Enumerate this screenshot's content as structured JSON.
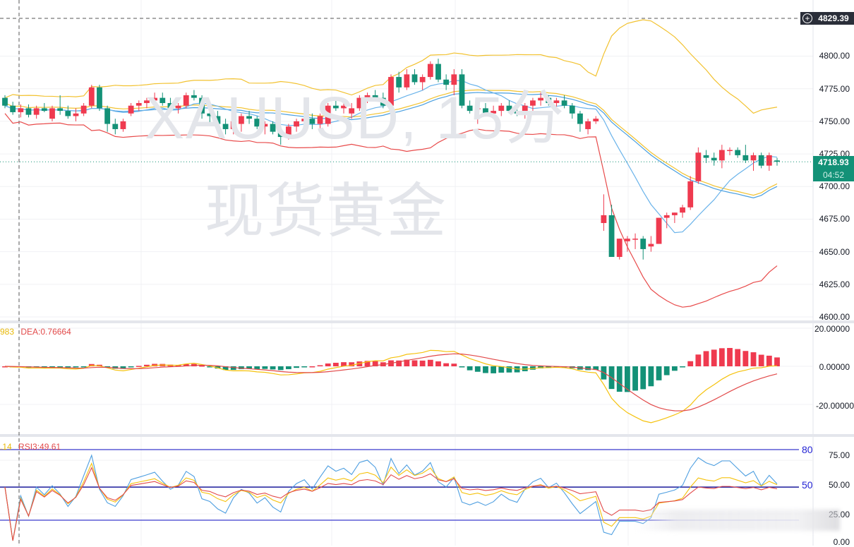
{
  "symbol": "XAUUSD",
  "timeframe": "15分",
  "watermark": {
    "line1": "XAUUSD, 15分",
    "line2": "现货黄金"
  },
  "colors": {
    "up": "#ef3a4f",
    "down": "#139177",
    "boll_upper": "#f2c230",
    "boll_mid_a": "#4a9fe0",
    "boll_mid_b": "#6ab3ea",
    "boll_lower": "#e84a4a",
    "dif": "#f5c20d",
    "dea": "#e24a4a",
    "rsi1": "#4d9ee0",
    "rsi2": "#f5c20d",
    "rsi3": "#e24a4a",
    "rsi_level": "#2424d4",
    "price_badge": "#139177",
    "crosshair_badge": "#2a2e39"
  },
  "price_axis": {
    "ticks": [
      "4800.00",
      "4775.00",
      "4750.00",
      "4725.00",
      "4700.00",
      "4675.00",
      "4650.00",
      "4625.00",
      "4600.00"
    ],
    "crosshair_value": "4829.39",
    "last_price": "4718.93",
    "countdown": "04:52"
  },
  "macd_pane": {
    "legend_dif": "983",
    "legend_dea": "DEA:0.76664",
    "ticks": [
      "20.00000",
      "0.00000",
      "-20.00000"
    ]
  },
  "rsi_pane": {
    "legend_rsi2": ".14",
    "legend_rsi3": "RSI3:49.61",
    "ticks": [
      "75.00",
      "50.00",
      "25.00",
      "0.00"
    ],
    "level_labels": [
      "80",
      "50"
    ]
  },
  "chart_data": [
    {
      "type": "candlestick",
      "title": "XAUUSD, 15分 现货黄金",
      "indicators": [
        "BOLL upper",
        "BOLL mid",
        "BOLL lower",
        "MA"
      ],
      "ylim": [
        4600,
        4830
      ],
      "yticks": [
        4600,
        4625,
        4650,
        4675,
        4700,
        4725,
        4750,
        4775,
        4800
      ],
      "last_price": 4718.93,
      "crosshair_price": 4829.39,
      "candles": [
        [
          4768,
          4770,
          4760,
          4762
        ],
        [
          4762,
          4765,
          4755,
          4757
        ],
        [
          4757,
          4763,
          4753,
          4760
        ],
        [
          4760,
          4763,
          4753,
          4755
        ],
        [
          4755,
          4762,
          4752,
          4760
        ],
        [
          4760,
          4764,
          4757,
          4758
        ],
        [
          4752,
          4762,
          4750,
          4760
        ],
        [
          4760,
          4770,
          4755,
          4758
        ],
        [
          4758,
          4762,
          4752,
          4754
        ],
        [
          4754,
          4760,
          4750,
          4756
        ],
        [
          4756,
          4764,
          4754,
          4762
        ],
        [
          4762,
          4778,
          4760,
          4776
        ],
        [
          4776,
          4778,
          4758,
          4760
        ],
        [
          4760,
          4762,
          4742,
          4748
        ],
        [
          4748,
          4752,
          4740,
          4744
        ],
        [
          4744,
          4752,
          4742,
          4750
        ],
        [
          4756,
          4764,
          4754,
          4762
        ],
        [
          4762,
          4766,
          4758,
          4764
        ],
        [
          4764,
          4768,
          4760,
          4766
        ],
        [
          4766,
          4772,
          4762,
          4768
        ],
        [
          4768,
          4772,
          4762,
          4764
        ],
        [
          4764,
          4768,
          4758,
          4760
        ],
        [
          4760,
          4764,
          4756,
          4762
        ],
        [
          4762,
          4772,
          4760,
          4770
        ],
        [
          4770,
          4774,
          4766,
          4768
        ],
        [
          4768,
          4770,
          4752,
          4756
        ],
        [
          4756,
          4758,
          4748,
          4754
        ],
        [
          4754,
          4758,
          4746,
          4748
        ],
        [
          4748,
          4752,
          4740,
          4744
        ],
        [
          4744,
          4752,
          4740,
          4750
        ],
        [
          4748,
          4756,
          4742,
          4754
        ],
        [
          4754,
          4758,
          4748,
          4752
        ],
        [
          4752,
          4754,
          4744,
          4746
        ],
        [
          4746,
          4750,
          4740,
          4748
        ],
        [
          4748,
          4750,
          4740,
          4742
        ],
        [
          4742,
          4746,
          4732,
          4738
        ],
        [
          4738,
          4748,
          4736,
          4746
        ],
        [
          4746,
          4752,
          4742,
          4750
        ],
        [
          4750,
          4754,
          4746,
          4752
        ],
        [
          4752,
          4756,
          4744,
          4748
        ],
        [
          4748,
          4756,
          4744,
          4754
        ],
        [
          4748,
          4764,
          4746,
          4762
        ],
        [
          4762,
          4766,
          4758,
          4760
        ],
        [
          4760,
          4764,
          4756,
          4762
        ],
        [
          4756,
          4764,
          4752,
          4760
        ],
        [
          4760,
          4770,
          4758,
          4768
        ],
        [
          4768,
          4772,
          4764,
          4770
        ],
        [
          4770,
          4774,
          4766,
          4768
        ],
        [
          4768,
          4772,
          4760,
          4762
        ],
        [
          4762,
          4786,
          4760,
          4784
        ],
        [
          4784,
          4788,
          4772,
          4776
        ],
        [
          4776,
          4790,
          4774,
          4786
        ],
        [
          4786,
          4790,
          4778,
          4780
        ],
        [
          4780,
          4786,
          4774,
          4784
        ],
        [
          4784,
          4796,
          4782,
          4794
        ],
        [
          4794,
          4798,
          4780,
          4782
        ],
        [
          4782,
          4786,
          4774,
          4778
        ],
        [
          4778,
          4790,
          4770,
          4786
        ],
        [
          4786,
          4790,
          4760,
          4762
        ],
        [
          4762,
          4766,
          4756,
          4758
        ],
        [
          4760,
          4766,
          4748,
          4760
        ],
        [
          4760,
          4764,
          4754,
          4756
        ],
        [
          4756,
          4762,
          4752,
          4758
        ],
        [
          4758,
          4764,
          4754,
          4762
        ],
        [
          4762,
          4766,
          4756,
          4758
        ],
        [
          4758,
          4762,
          4754,
          4756
        ],
        [
          4756,
          4764,
          4752,
          4762
        ],
        [
          4762,
          4768,
          4758,
          4766
        ],
        [
          4766,
          4772,
          4762,
          4768
        ],
        [
          4768,
          4770,
          4762,
          4764
        ],
        [
          4764,
          4768,
          4760,
          4766
        ],
        [
          4766,
          4770,
          4760,
          4762
        ],
        [
          4762,
          4764,
          4752,
          4756
        ],
        [
          4756,
          4758,
          4742,
          4748
        ],
        [
          4744,
          4752,
          4740,
          4750
        ],
        [
          4750,
          4754,
          4748,
          4752
        ],
        [
          4672,
          4694,
          4666,
          4678
        ],
        [
          4678,
          4686,
          4646,
          4646
        ],
        [
          4646,
          4660,
          4644,
          4660
        ],
        [
          4658,
          4662,
          4650,
          4660
        ],
        [
          4660,
          4664,
          4652,
          4660
        ],
        [
          4660,
          4662,
          4644,
          4652
        ],
        [
          4654,
          4662,
          4650,
          4656
        ],
        [
          4656,
          4676,
          4656,
          4676
        ],
        [
          4676,
          4680,
          4668,
          4678
        ],
        [
          4678,
          4680,
          4672,
          4680
        ],
        [
          4680,
          4686,
          4676,
          4684
        ],
        [
          4684,
          4708,
          4682,
          4704
        ],
        [
          4704,
          4730,
          4702,
          4726
        ],
        [
          4724,
          4728,
          4718,
          4722
        ],
        [
          4722,
          4726,
          4716,
          4720
        ],
        [
          4720,
          4732,
          4714,
          4728
        ],
        [
          4728,
          4730,
          4724,
          4728
        ],
        [
          4728,
          4730,
          4722,
          4724
        ],
        [
          4724,
          4732,
          4718,
          4720
        ],
        [
          4720,
          4726,
          4712,
          4724
        ],
        [
          4724,
          4726,
          4714,
          4716
        ],
        [
          4716,
          4726,
          4712,
          4724
        ],
        [
          4720,
          4722,
          4716,
          4719
        ]
      ]
    },
    {
      "type": "bar+line",
      "title": "MACD",
      "legend": [
        "DIF:…983",
        "DEA:0.76664"
      ],
      "ylim": [
        -30,
        22
      ],
      "yticks": [
        -20,
        0,
        20
      ],
      "histogram_last_bars": [
        -4,
        -8,
        -14,
        -22,
        -25,
        -24,
        -23,
        -20,
        -14,
        -8,
        -4,
        -1,
        3,
        8,
        12,
        14,
        16,
        17,
        16,
        14,
        13,
        11,
        10,
        9
      ],
      "dif_min": -28,
      "dea_min": -22
    },
    {
      "type": "line",
      "title": "RSI",
      "legend": [
        "RSI1",
        "RSI2:…14",
        "RSI3:49.61"
      ],
      "ylim": [
        0,
        100
      ],
      "yticks": [
        0,
        25,
        50,
        75
      ],
      "levels": [
        20,
        50,
        80
      ],
      "last_values": {
        "RSI1": 62,
        "RSI2": 55,
        "RSI3": 49.61
      }
    }
  ]
}
